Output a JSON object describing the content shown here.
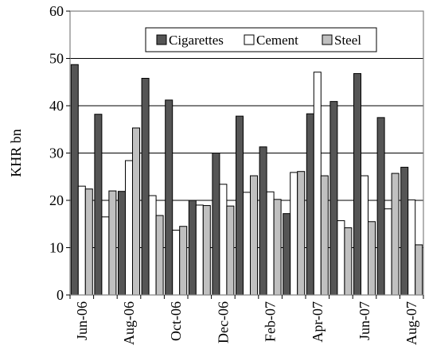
{
  "chart_data": {
    "type": "bar",
    "ylabel": "KHR bn",
    "xlabel": "",
    "ylim": [
      0,
      60
    ],
    "yticks": [
      0,
      10,
      20,
      30,
      40,
      50,
      60
    ],
    "grid": true,
    "legend_position": "top-right",
    "categories": [
      "Jun-06",
      "Jul-06",
      "Aug-06",
      "Sep-06",
      "Oct-06",
      "Nov-06",
      "Dec-06",
      "Jan-07",
      "Feb-07",
      "Mar-07",
      "Apr-07",
      "May-07",
      "Jun-07",
      "Jul-07",
      "Aug-07"
    ],
    "x_tick_labels": [
      "Jun-06",
      "Aug-06",
      "Oct-06",
      "Dec-06",
      "Feb-07",
      "Apr-07",
      "Jun-07",
      "Aug-07"
    ],
    "series": [
      {
        "name": "Cigarettes",
        "color": "#555555",
        "values": [
          48.7,
          38.2,
          21.9,
          45.8,
          41.2,
          20.0,
          30.0,
          37.8,
          31.3,
          17.2,
          38.3,
          40.9,
          46.8,
          37.5,
          27.0
        ]
      },
      {
        "name": "Cement",
        "color": "#ffffff",
        "values": [
          23.0,
          16.5,
          28.4,
          21.0,
          13.7,
          19.0,
          23.4,
          21.7,
          21.8,
          25.9,
          47.1,
          15.7,
          25.2,
          18.2,
          20.1
        ]
      },
      {
        "name": "Steel",
        "color": "#c0c0c0",
        "values": [
          22.4,
          22.0,
          35.3,
          16.8,
          14.5,
          18.9,
          18.8,
          25.2,
          20.2,
          26.1,
          25.2,
          14.2,
          15.5,
          25.7,
          10.6
        ]
      }
    ]
  }
}
